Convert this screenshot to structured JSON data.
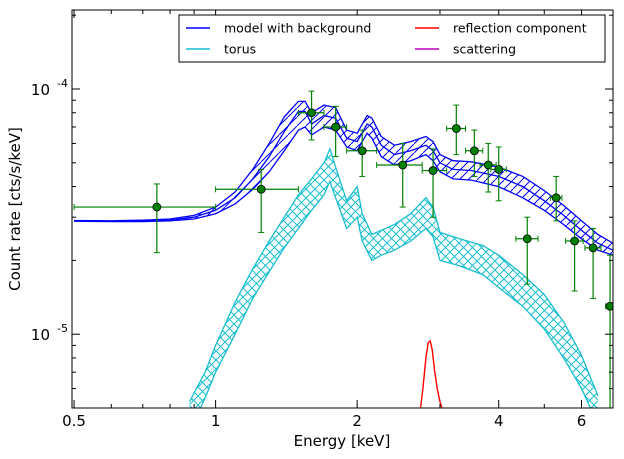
{
  "chart_data": {
    "type": "line",
    "title": "",
    "xlabel": "Energy [keV]",
    "ylabel": "Count rate [cts/s/keV]",
    "xscale": "log",
    "yscale": "log",
    "xlim": [
      0.495,
      7.0
    ],
    "ylim": [
      5e-06,
      0.00021
    ],
    "x_ticks": [
      {
        "value": 0.5,
        "label": "0.5"
      },
      {
        "value": 1,
        "label": "1"
      },
      {
        "value": 2,
        "label": "2"
      },
      {
        "value": 4,
        "label": "4"
      },
      {
        "value": 6,
        "label": "6"
      }
    ],
    "y_ticks": [
      {
        "value": 0.0001,
        "base": "10",
        "exp": "-4"
      },
      {
        "value": 1e-05,
        "base": "10",
        "exp": "-5"
      }
    ],
    "legend": {
      "position": "top-right",
      "columns": 2,
      "entries": [
        {
          "label": "model with background",
          "color": "#0000ff"
        },
        {
          "label": "torus",
          "color": "#17becf"
        },
        {
          "label": "reflection component",
          "color": "#ff0000"
        },
        {
          "label": "scattering",
          "color": "#bf00bf"
        }
      ]
    },
    "series": [
      {
        "name": "model with background",
        "color": "#0000ff",
        "hatch": "diagonal",
        "x": [
          0.5,
          0.6,
          0.7,
          0.8,
          0.9,
          1.0,
          1.1,
          1.2,
          1.3,
          1.4,
          1.5,
          1.55,
          1.6,
          1.7,
          1.8,
          1.9,
          2.0,
          2.1,
          2.15,
          2.25,
          2.4,
          2.6,
          2.8,
          2.9,
          3.0,
          3.2,
          3.5,
          4.0,
          4.5,
          5.0,
          5.5,
          6.0,
          6.5,
          7.0
        ],
        "mid": [
          2.9e-05,
          2.89e-05,
          2.9e-05,
          2.92e-05,
          3e-05,
          3.2e-05,
          3.6e-05,
          4.3e-05,
          5.3e-05,
          6.7e-05,
          8.1e-05,
          8.1e-05,
          7.2e-05,
          7.8e-05,
          7.6e-05,
          6.3e-05,
          6.1e-05,
          7.2e-05,
          7e-05,
          5.9e-05,
          5.4e-05,
          5.6e-05,
          5.9e-05,
          5.6e-05,
          5e-05,
          4.7e-05,
          4.65e-05,
          4.4e-05,
          4e-05,
          3.5e-05,
          3.05e-05,
          2.65e-05,
          2.35e-05,
          2.2e-05
        ],
        "lower": [
          2.89e-05,
          2.88e-05,
          2.88e-05,
          2.9e-05,
          2.95e-05,
          3.1e-05,
          3.4e-05,
          3.9e-05,
          4.6e-05,
          5.6e-05,
          6.8e-05,
          7e-05,
          6.5e-05,
          7e-05,
          6.8e-05,
          5.8e-05,
          5.6e-05,
          6.6e-05,
          6.3e-05,
          5.3e-05,
          4.9e-05,
          5.1e-05,
          5.4e-05,
          5.1e-05,
          4.6e-05,
          4.3e-05,
          4.25e-05,
          4e-05,
          3.6e-05,
          3.2e-05,
          2.8e-05,
          2.45e-05,
          2.2e-05,
          2.1e-05
        ],
        "upper": [
          2.91e-05,
          2.9e-05,
          2.92e-05,
          2.95e-05,
          3.05e-05,
          3.3e-05,
          3.8e-05,
          4.7e-05,
          6e-05,
          7.7e-05,
          8.9e-05,
          8.9e-05,
          8e-05,
          8.6e-05,
          8.4e-05,
          6.8e-05,
          6.6e-05,
          7.8e-05,
          7.6e-05,
          6.4e-05,
          5.9e-05,
          6.1e-05,
          6.4e-05,
          6.1e-05,
          5.4e-05,
          5.1e-05,
          5.05e-05,
          4.8e-05,
          4.4e-05,
          3.85e-05,
          3.35e-05,
          2.9e-05,
          2.55e-05,
          2.35e-05
        ]
      },
      {
        "name": "torus",
        "color": "#17becf",
        "hatch": "cross",
        "x": [
          0.88,
          0.95,
          1.0,
          1.1,
          1.2,
          1.3,
          1.4,
          1.5,
          1.6,
          1.7,
          1.75,
          1.8,
          1.9,
          2.0,
          2.05,
          2.15,
          2.25,
          2.4,
          2.6,
          2.8,
          2.9,
          3.0,
          3.3,
          3.7,
          4.0,
          4.5,
          5.0,
          5.5,
          6.0,
          6.5
        ],
        "lower": [
          4e-06,
          5.5e-06,
          7e-06,
          1e-05,
          1.4e-05,
          1.8e-05,
          2.25e-05,
          2.7e-05,
          3.2e-05,
          3.7e-05,
          4.2e-05,
          3.6e-05,
          2.7e-05,
          3e-05,
          2.4e-05,
          2e-05,
          2.1e-05,
          2.2e-05,
          2.4e-05,
          2.7e-05,
          2.5e-05,
          2e-05,
          1.9e-05,
          1.75e-05,
          1.55e-05,
          1.3e-05,
          1.05e-05,
          8e-06,
          6e-06,
          4.3e-06
        ],
        "upper": [
          5.3e-06,
          7e-06,
          9e-06,
          1.35e-05,
          1.85e-05,
          2.4e-05,
          3e-05,
          3.7e-05,
          4.3e-05,
          5e-05,
          5.7e-05,
          4.8e-05,
          3.5e-05,
          4e-05,
          3.1e-05,
          2.55e-05,
          2.65e-05,
          2.8e-05,
          3.1e-05,
          3.6e-05,
          3.3e-05,
          2.6e-05,
          2.45e-05,
          2.3e-05,
          2.1e-05,
          1.75e-05,
          1.45e-05,
          1.12e-05,
          8.2e-06,
          5.6e-06
        ]
      },
      {
        "name": "reflection component",
        "color": "#ff0000",
        "x": [
          2.72,
          2.76,
          2.8,
          2.83,
          2.86,
          2.89,
          2.92,
          2.96,
          3.0,
          3.05
        ],
        "values": [
          4.8e-06,
          6e-06,
          8e-06,
          9.2e-06,
          9.4e-06,
          8.6e-06,
          7.2e-06,
          6e-06,
          5.3e-06,
          4.8e-06
        ]
      }
    ],
    "data_points": [
      {
        "x": 0.75,
        "y": 3.3e-05,
        "xlo": 0.5,
        "xhi": 1.0,
        "ylo": 2.15e-05,
        "yhi": 4.1e-05
      },
      {
        "x": 1.25,
        "y": 3.9e-05,
        "xlo": 1.0,
        "xhi": 1.5,
        "ylo": 2.6e-05,
        "yhi": 4.7e-05
      },
      {
        "x": 1.6,
        "y": 8e-05,
        "xlo": 1.5,
        "xhi": 1.7,
        "ylo": 6.2e-05,
        "yhi": 9.8e-05
      },
      {
        "x": 1.8,
        "y": 7e-05,
        "xlo": 1.7,
        "xhi": 1.9,
        "ylo": 5.3e-05,
        "yhi": 8.5e-05
      },
      {
        "x": 2.05,
        "y": 5.6e-05,
        "xlo": 1.9,
        "xhi": 2.2,
        "ylo": 4.4e-05,
        "yhi": 6.8e-05
      },
      {
        "x": 2.5,
        "y": 4.9e-05,
        "xlo": 2.2,
        "xhi": 2.75,
        "ylo": 3.3e-05,
        "yhi": 6e-05
      },
      {
        "x": 2.9,
        "y": 4.65e-05,
        "xlo": 2.75,
        "xhi": 3.1,
        "ylo": 3e-05,
        "yhi": 5.7e-05
      },
      {
        "x": 3.25,
        "y": 6.9e-05,
        "xlo": 3.1,
        "xhi": 3.4,
        "ylo": 5.4e-05,
        "yhi": 8.6e-05
      },
      {
        "x": 3.55,
        "y": 5.6e-05,
        "xlo": 3.4,
        "xhi": 3.7,
        "ylo": 4.4e-05,
        "yhi": 6.8e-05
      },
      {
        "x": 3.8,
        "y": 4.9e-05,
        "xlo": 3.65,
        "xhi": 3.95,
        "ylo": 3.8e-05,
        "yhi": 6e-05
      },
      {
        "x": 4.0,
        "y": 4.7e-05,
        "xlo": 3.85,
        "xhi": 4.15,
        "ylo": 3.5e-05,
        "yhi": 5.8e-05
      },
      {
        "x": 4.6,
        "y": 2.45e-05,
        "xlo": 4.35,
        "xhi": 4.85,
        "ylo": 1.6e-05,
        "yhi": 3e-05
      },
      {
        "x": 5.3,
        "y": 3.6e-05,
        "xlo": 5.15,
        "xhi": 5.45,
        "ylo": 2.9e-05,
        "yhi": 4.4e-05
      },
      {
        "x": 5.8,
        "y": 2.4e-05,
        "xlo": 5.55,
        "xhi": 6.05,
        "ylo": 1.5e-05,
        "yhi": 2.9e-05
      },
      {
        "x": 6.35,
        "y": 2.25e-05,
        "xlo": 6.1,
        "xhi": 6.6,
        "ylo": 1.4e-05,
        "yhi": 2.7e-05
      },
      {
        "x": 6.9,
        "y": 1.3e-05,
        "xlo": 6.75,
        "xhi": 7.0,
        "ylo": 5e-06,
        "yhi": 2.1e-05
      }
    ],
    "data_point_color": "#008000",
    "grid": false
  }
}
